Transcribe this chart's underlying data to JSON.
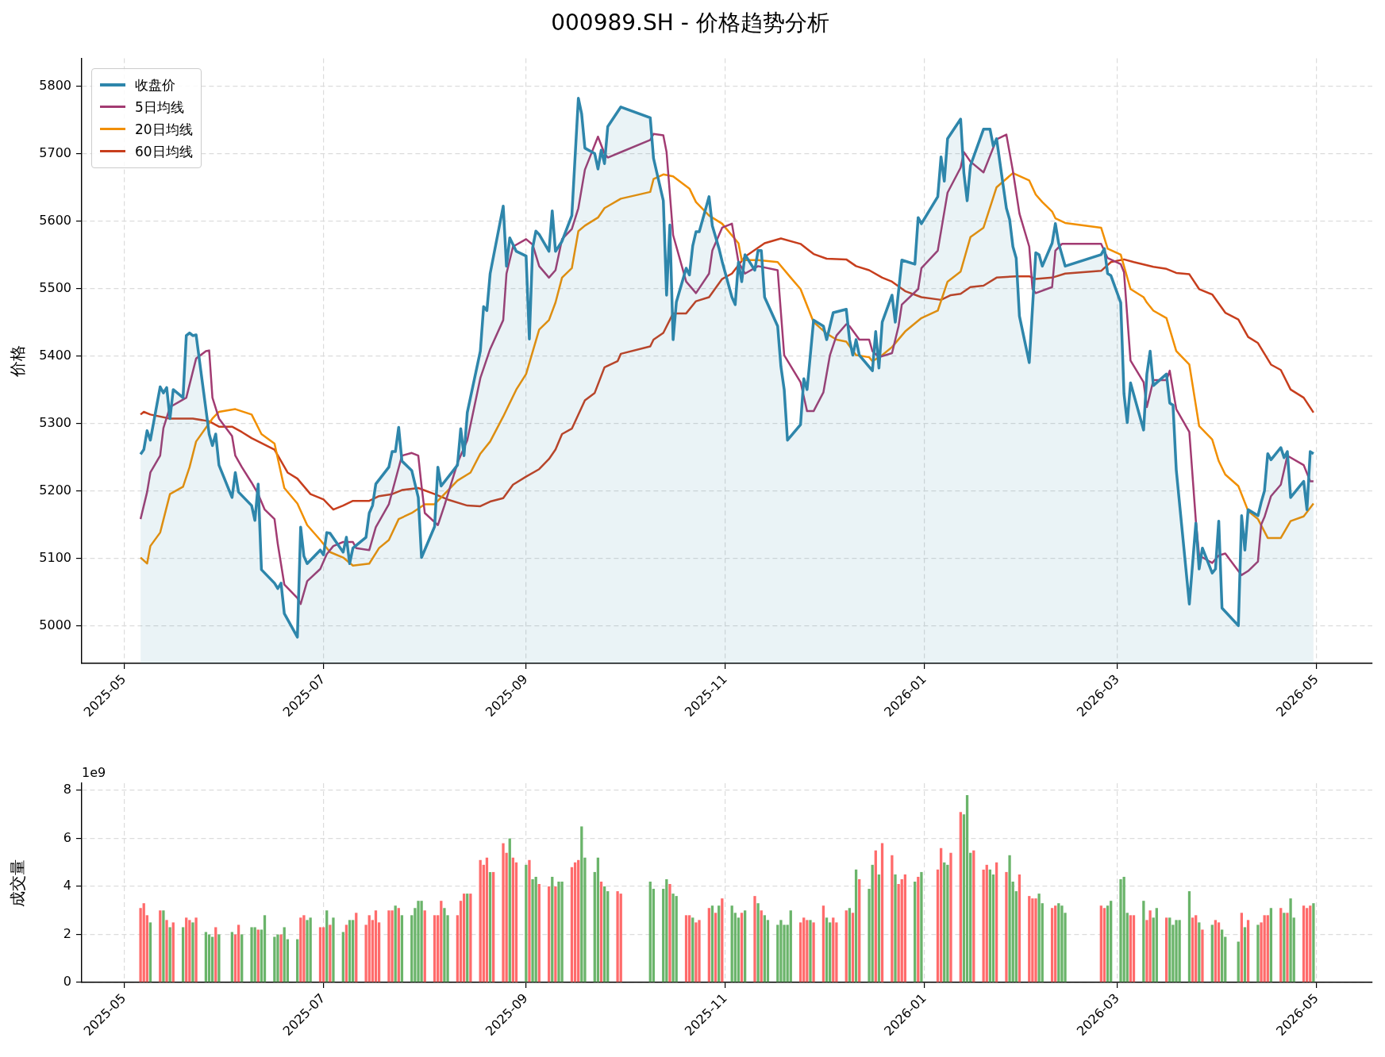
{
  "chart_data": [
    {
      "type": "line",
      "title": "000989.SH - 价格趋势分析",
      "ylabel": "价格",
      "xlim": [
        "2025-04-18",
        "2026-05-18"
      ],
      "xticks": [
        "2025-05",
        "2025-07",
        "2025-09",
        "2025-11",
        "2026-01",
        "2026-03",
        "2026-05"
      ],
      "ylim": [
        4944,
        5841
      ],
      "yticks": [
        5000,
        5100,
        5200,
        5300,
        5400,
        5500,
        5600,
        5700,
        5800
      ],
      "grid": true,
      "legend": "top left",
      "series": [
        {
          "name": "收盘价",
          "type": "area",
          "color": "#2e86ab",
          "x": [
            "2025-05-06",
            "2025-05-07",
            "2025-05-08",
            "2025-05-09",
            "2025-05-12",
            "2025-05-13",
            "2025-05-14",
            "2025-05-15",
            "2025-05-16",
            "2025-05-19",
            "2025-05-20",
            "2025-05-21",
            "2025-05-22",
            "2025-05-23",
            "2025-05-27",
            "2025-05-28",
            "2025-05-29",
            "2025-05-30",
            "2025-06-03",
            "2025-06-04",
            "2025-06-05",
            "2025-06-09",
            "2025-06-10",
            "2025-06-11",
            "2025-06-12",
            "2025-06-16",
            "2025-06-17",
            "2025-06-18",
            "2025-06-19",
            "2025-06-23",
            "2025-06-24",
            "2025-06-25",
            "2025-06-26",
            "2025-06-30",
            "2025-07-01",
            "2025-07-02",
            "2025-07-03",
            "2025-07-07",
            "2025-07-08",
            "2025-07-09",
            "2025-07-10",
            "2025-07-14",
            "2025-07-15",
            "2025-07-16",
            "2025-07-17",
            "2025-07-21",
            "2025-07-22",
            "2025-07-23",
            "2025-07-24",
            "2025-07-25",
            "2025-07-28",
            "2025-07-30",
            "2025-07-31",
            "2025-08-04",
            "2025-08-05",
            "2025-08-06",
            "2025-08-11",
            "2025-08-12",
            "2025-08-13",
            "2025-08-14",
            "2025-08-18",
            "2025-08-19",
            "2025-08-20",
            "2025-08-21",
            "2025-08-25",
            "2025-08-26",
            "2025-08-27",
            "2025-08-29",
            "2025-09-01",
            "2025-09-02",
            "2025-09-03",
            "2025-09-04",
            "2025-09-05",
            "2025-09-08",
            "2025-09-09",
            "2025-09-10",
            "2025-09-12",
            "2025-09-15",
            "2025-09-17",
            "2025-09-18",
            "2025-09-19",
            "2025-09-22",
            "2025-09-23",
            "2025-09-24",
            "2025-09-25",
            "2025-09-26",
            "2025-09-30",
            "2025-10-09",
            "2025-10-10",
            "2025-10-13",
            "2025-10-14",
            "2025-10-15",
            "2025-10-16",
            "2025-10-17",
            "2025-10-20",
            "2025-10-21",
            "2025-10-22",
            "2025-10-23",
            "2025-10-24",
            "2025-10-27",
            "2025-10-28",
            "2025-10-30",
            "2025-10-31",
            "2025-11-03",
            "2025-11-04",
            "2025-11-05",
            "2025-11-06",
            "2025-11-07",
            "2025-11-10",
            "2025-11-11",
            "2025-11-12",
            "2025-11-13",
            "2025-11-17",
            "2025-11-18",
            "2025-11-19",
            "2025-11-20",
            "2025-11-24",
            "2025-11-25",
            "2025-11-26",
            "2025-11-27",
            "2025-11-28",
            "2025-12-01",
            "2025-12-02",
            "2025-12-04",
            "2025-12-08",
            "2025-12-09",
            "2025-12-10",
            "2025-12-11",
            "2025-12-12",
            "2025-12-16",
            "2025-12-17",
            "2025-12-18",
            "2025-12-19",
            "2025-12-22",
            "2025-12-23",
            "2025-12-25",
            "2025-12-29",
            "2025-12-30",
            "2025-12-31",
            "2026-01-05",
            "2026-01-06",
            "2026-01-07",
            "2026-01-08",
            "2026-01-12",
            "2026-01-13",
            "2026-01-14",
            "2026-01-15",
            "2026-01-19",
            "2026-01-21",
            "2026-01-22",
            "2026-01-23",
            "2026-01-26",
            "2026-01-27",
            "2026-01-28",
            "2026-01-29",
            "2026-01-30",
            "2026-02-02",
            "2026-02-04",
            "2026-02-05",
            "2026-02-06",
            "2026-02-09",
            "2026-02-10",
            "2026-02-11",
            "2026-02-13",
            "2026-02-24",
            "2026-02-25",
            "2026-02-26",
            "2026-02-27",
            "2026-03-02",
            "2026-03-03",
            "2026-03-04",
            "2026-03-05",
            "2026-03-09",
            "2026-03-10",
            "2026-03-11",
            "2026-03-12",
            "2026-03-16",
            "2026-03-17",
            "2026-03-18",
            "2026-03-19",
            "2026-03-23",
            "2026-03-25",
            "2026-03-26",
            "2026-03-27",
            "2026-03-30",
            "2026-03-31",
            "2026-04-01",
            "2026-04-02",
            "2026-04-07",
            "2026-04-08",
            "2026-04-09",
            "2026-04-10",
            "2026-04-13",
            "2026-04-14",
            "2026-04-15",
            "2026-04-16",
            "2026-04-17",
            "2026-04-20",
            "2026-04-21",
            "2026-04-22",
            "2026-04-23",
            "2026-04-27",
            "2026-04-28",
            "2026-04-29",
            "2026-04-30"
          ],
          "values": [
            5254,
            5261,
            5289,
            5275,
            5354,
            5345,
            5353,
            5307,
            5350,
            5338,
            5430,
            5434,
            5430,
            5431,
            5284,
            5267,
            5284,
            5238,
            5190,
            5227,
            5198,
            5178,
            5156,
            5210,
            5083,
            5063,
            5055,
            5063,
            5018,
            4983,
            5146,
            5103,
            5092,
            5112,
            5105,
            5138,
            5137,
            5109,
            5131,
            5092,
            5115,
            5131,
            5167,
            5178,
            5210,
            5235,
            5258,
            5258,
            5294,
            5244,
            5230,
            5190,
            5101,
            5147,
            5235,
            5207,
            5238,
            5292,
            5252,
            5316,
            5407,
            5473,
            5467,
            5522,
            5622,
            5533,
            5575,
            5555,
            5548,
            5425,
            5560,
            5585,
            5580,
            5555,
            5615,
            5555,
            5570,
            5608,
            5782,
            5759,
            5708,
            5700,
            5677,
            5705,
            5685,
            5740,
            5769,
            5753,
            5693,
            5630,
            5490,
            5594,
            5424,
            5480,
            5530,
            5520,
            5563,
            5584,
            5584,
            5636,
            5593,
            5560,
            5540,
            5487,
            5476,
            5539,
            5510,
            5550,
            5527,
            5556,
            5556,
            5487,
            5444,
            5384,
            5350,
            5275,
            5298,
            5366,
            5350,
            5401,
            5453,
            5444,
            5424,
            5464,
            5469,
            5424,
            5401,
            5424,
            5401,
            5378,
            5436,
            5382,
            5450,
            5490,
            5450,
            5542,
            5536,
            5605,
            5596,
            5636,
            5695,
            5659,
            5722,
            5751,
            5671,
            5630,
            5682,
            5736,
            5736,
            5711,
            5722,
            5619,
            5602,
            5562,
            5545,
            5459,
            5390,
            5553,
            5550,
            5533,
            5567,
            5596,
            5567,
            5533,
            5550,
            5559,
            5522,
            5519,
            5479,
            5344,
            5301,
            5360,
            5290,
            5373,
            5407,
            5356,
            5373,
            5330,
            5327,
            5231,
            5032,
            5152,
            5084,
            5115,
            5078,
            5084,
            5155,
            5026,
            5000,
            5163,
            5112,
            5172,
            5163,
            5183,
            5200,
            5255,
            5246,
            5264,
            5249,
            5258,
            5190,
            5214,
            5172,
            5258,
            5255
          ]
        },
        {
          "name": "5日均线",
          "color": "#a23b72",
          "x": [
            "2025-05-06",
            "2025-05-08",
            "2025-05-09",
            "2025-05-12",
            "2025-05-13",
            "2025-05-15",
            "2025-05-20",
            "2025-05-23",
            "2025-05-26",
            "2025-05-27",
            "2025-05-28",
            "2025-05-30",
            "2025-06-03",
            "2025-06-04",
            "2025-06-06",
            "2025-06-09",
            "2025-06-11",
            "2025-06-13",
            "2025-06-16",
            "2025-06-17",
            "2025-06-19",
            "2025-06-23",
            "2025-06-24",
            "2025-06-26",
            "2025-06-30",
            "2025-07-02",
            "2025-07-04",
            "2025-07-07",
            "2025-07-10",
            "2025-07-11",
            "2025-07-15",
            "2025-07-17",
            "2025-07-21",
            "2025-07-25",
            "2025-07-28",
            "2025-07-30",
            "2025-07-31",
            "2025-08-01",
            "2025-08-05",
            "2025-08-07",
            "2025-08-11",
            "2025-08-14",
            "2025-08-18",
            "2025-08-21",
            "2025-08-25",
            "2025-08-26",
            "2025-08-28",
            "2025-09-01",
            "2025-09-03",
            "2025-09-05",
            "2025-09-08",
            "2025-09-10",
            "2025-09-12",
            "2025-09-15",
            "2025-09-17",
            "2025-09-19",
            "2025-09-23",
            "2025-09-25",
            "2025-09-26",
            "2025-09-30",
            "2025-10-09",
            "2025-10-10",
            "2025-10-13",
            "2025-10-14",
            "2025-10-16",
            "2025-10-20",
            "2025-10-23",
            "2025-10-27",
            "2025-10-28",
            "2025-10-31",
            "2025-11-03",
            "2025-11-05",
            "2025-11-07",
            "2025-11-11",
            "2025-11-17",
            "2025-11-19",
            "2025-11-24",
            "2025-11-26",
            "2025-11-28",
            "2025-12-01",
            "2025-12-03",
            "2025-12-05",
            "2025-12-08",
            "2025-12-09",
            "2025-12-12",
            "2025-12-15",
            "2025-12-16",
            "2025-12-18",
            "2025-12-22",
            "2025-12-24",
            "2025-12-25",
            "2025-12-30",
            "2025-12-31",
            "2026-01-05",
            "2026-01-08",
            "2026-01-12",
            "2026-01-13",
            "2026-01-15",
            "2026-01-19",
            "2026-01-23",
            "2026-01-26",
            "2026-01-28",
            "2026-01-30",
            "2026-02-02",
            "2026-02-03",
            "2026-02-04",
            "2026-02-09",
            "2026-02-10",
            "2026-02-12",
            "2026-02-24",
            "2026-02-26",
            "2026-03-02",
            "2026-03-03",
            "2026-03-05",
            "2026-03-09",
            "2026-03-10",
            "2026-03-12",
            "2026-03-16",
            "2026-03-17",
            "2026-03-19",
            "2026-03-23",
            "2026-03-25",
            "2026-03-26",
            "2026-03-30",
            "2026-04-01",
            "2026-04-03",
            "2026-04-07",
            "2026-04-08",
            "2026-04-10",
            "2026-04-13",
            "2026-04-14",
            "2026-04-15",
            "2026-04-17",
            "2026-04-20",
            "2026-04-22",
            "2026-04-27",
            "2026-04-29",
            "2026-04-30"
          ],
          "values": [
            5158,
            5198,
            5227,
            5252,
            5293,
            5324,
            5338,
            5396,
            5407,
            5408,
            5338,
            5307,
            5281,
            5252,
            5235,
            5212,
            5195,
            5172,
            5158,
            5121,
            5061,
            5041,
            5032,
            5066,
            5084,
            5106,
            5118,
            5124,
            5124,
            5115,
            5112,
            5146,
            5180,
            5252,
            5256,
            5252,
            5207,
            5167,
            5149,
            5178,
            5241,
            5275,
            5367,
            5410,
            5453,
            5522,
            5562,
            5573,
            5565,
            5533,
            5516,
            5527,
            5573,
            5588,
            5619,
            5676,
            5725,
            5700,
            5694,
            5702,
            5720,
            5729,
            5727,
            5702,
            5579,
            5510,
            5493,
            5522,
            5556,
            5590,
            5596,
            5539,
            5522,
            5533,
            5527,
            5401,
            5361,
            5318,
            5318,
            5346,
            5401,
            5430,
            5447,
            5444,
            5424,
            5424,
            5407,
            5398,
            5404,
            5444,
            5476,
            5499,
            5530,
            5556,
            5642,
            5679,
            5702,
            5688,
            5672,
            5721,
            5728,
            5674,
            5611,
            5562,
            5499,
            5493,
            5502,
            5556,
            5566,
            5566,
            5545,
            5536,
            5524,
            5393,
            5361,
            5324,
            5364,
            5364,
            5378,
            5321,
            5287,
            5155,
            5104,
            5093,
            5104,
            5107,
            5081,
            5075,
            5081,
            5095,
            5150,
            5161,
            5192,
            5209,
            5252,
            5238,
            5214,
            5214
          ]
        },
        {
          "name": "20日均线",
          "color": "#f18f01",
          "x": [
            "2025-05-06",
            "2025-05-08",
            "2025-05-09",
            "2025-05-12",
            "2025-05-15",
            "2025-05-19",
            "2025-05-21",
            "2025-05-23",
            "2025-05-28",
            "2025-05-30",
            "2025-06-04",
            "2025-06-09",
            "2025-06-12",
            "2025-06-16",
            "2025-06-19",
            "2025-06-23",
            "2025-06-26",
            "2025-06-30",
            "2025-07-03",
            "2025-07-07",
            "2025-07-10",
            "2025-07-15",
            "2025-07-18",
            "2025-07-21",
            "2025-07-24",
            "2025-07-28",
            "2025-08-01",
            "2025-08-04",
            "2025-08-07",
            "2025-08-11",
            "2025-08-15",
            "2025-08-18",
            "2025-08-21",
            "2025-08-25",
            "2025-08-29",
            "2025-09-01",
            "2025-09-05",
            "2025-09-08",
            "2025-09-10",
            "2025-09-12",
            "2025-09-15",
            "2025-09-17",
            "2025-09-19",
            "2025-09-23",
            "2025-09-25",
            "2025-09-30",
            "2025-10-09",
            "2025-10-10",
            "2025-10-13",
            "2025-10-16",
            "2025-10-21",
            "2025-10-23",
            "2025-10-27",
            "2025-10-31",
            "2025-11-05",
            "2025-11-06",
            "2025-11-11",
            "2025-11-17",
            "2025-11-21",
            "2025-11-24",
            "2025-11-28",
            "2025-12-02",
            "2025-12-05",
            "2025-12-08",
            "2025-12-11",
            "2025-12-15",
            "2025-12-16",
            "2025-12-19",
            "2025-12-22",
            "2025-12-26",
            "2025-12-31",
            "2026-01-05",
            "2026-01-08",
            "2026-01-12",
            "2026-01-15",
            "2026-01-19",
            "2026-01-23",
            "2026-01-28",
            "2026-02-02",
            "2026-02-04",
            "2026-02-06",
            "2026-02-09",
            "2026-02-10",
            "2026-02-13",
            "2026-02-24",
            "2026-02-26",
            "2026-03-02",
            "2026-03-05",
            "2026-03-09",
            "2026-03-10",
            "2026-03-12",
            "2026-03-16",
            "2026-03-19",
            "2026-03-23",
            "2026-03-26",
            "2026-03-30",
            "2026-04-01",
            "2026-04-03",
            "2026-04-07",
            "2026-04-10",
            "2026-04-13",
            "2026-04-16",
            "2026-04-20",
            "2026-04-23",
            "2026-04-27",
            "2026-04-30"
          ],
          "values": [
            5101,
            5092,
            5118,
            5138,
            5195,
            5206,
            5235,
            5273,
            5307,
            5317,
            5321,
            5313,
            5284,
            5270,
            5204,
            5181,
            5149,
            5127,
            5109,
            5101,
            5089,
            5092,
            5115,
            5127,
            5158,
            5167,
            5180,
            5180,
            5195,
            5215,
            5227,
            5255,
            5273,
            5310,
            5350,
            5373,
            5439,
            5453,
            5479,
            5516,
            5530,
            5585,
            5593,
            5605,
            5619,
            5633,
            5643,
            5662,
            5669,
            5666,
            5648,
            5628,
            5608,
            5596,
            5567,
            5542,
            5542,
            5539,
            5516,
            5499,
            5450,
            5433,
            5424,
            5421,
            5401,
            5398,
            5392,
            5401,
            5413,
            5436,
            5456,
            5467,
            5510,
            5525,
            5576,
            5590,
            5650,
            5671,
            5660,
            5639,
            5628,
            5614,
            5604,
            5597,
            5590,
            5559,
            5550,
            5499,
            5487,
            5479,
            5467,
            5456,
            5407,
            5387,
            5296,
            5276,
            5244,
            5224,
            5207,
            5170,
            5158,
            5130,
            5130,
            5155,
            5162,
            5181
          ]
        },
        {
          "name": "60日均线",
          "color": "#c73e1d",
          "x": [
            "2025-05-06",
            "2025-05-07",
            "2025-05-09",
            "2025-05-15",
            "2025-05-22",
            "2025-05-27",
            "2025-05-30",
            "2025-06-03",
            "2025-06-06",
            "2025-06-09",
            "2025-06-16",
            "2025-06-20",
            "2025-06-23",
            "2025-06-27",
            "2025-07-01",
            "2025-07-04",
            "2025-07-07",
            "2025-07-10",
            "2025-07-15",
            "2025-07-18",
            "2025-07-22",
            "2025-07-25",
            "2025-07-30",
            "2025-08-04",
            "2025-08-08",
            "2025-08-14",
            "2025-08-18",
            "2025-08-21",
            "2025-08-25",
            "2025-08-28",
            "2025-09-01",
            "2025-09-05",
            "2025-09-08",
            "2025-09-10",
            "2025-09-12",
            "2025-09-15",
            "2025-09-19",
            "2025-09-22",
            "2025-09-25",
            "2025-09-29",
            "2025-09-30",
            "2025-10-09",
            "2025-10-10",
            "2025-10-13",
            "2025-10-16",
            "2025-10-20",
            "2025-10-23",
            "2025-10-27",
            "2025-10-31",
            "2025-11-03",
            "2025-11-07",
            "2025-11-13",
            "2025-11-18",
            "2025-11-24",
            "2025-11-28",
            "2025-12-02",
            "2025-12-08",
            "2025-12-11",
            "2025-12-15",
            "2025-12-19",
            "2025-12-22",
            "2025-12-26",
            "2025-12-31",
            "2026-01-06",
            "2026-01-09",
            "2026-01-12",
            "2026-01-15",
            "2026-01-19",
            "2026-01-23",
            "2026-01-29",
            "2026-02-02",
            "2026-02-04",
            "2026-02-09",
            "2026-02-13",
            "2026-02-24",
            "2026-02-27",
            "2026-03-03",
            "2026-03-06",
            "2026-03-12",
            "2026-03-16",
            "2026-03-19",
            "2026-03-23",
            "2026-03-26",
            "2026-03-30",
            "2026-04-03",
            "2026-04-07",
            "2026-04-10",
            "2026-04-13",
            "2026-04-17",
            "2026-04-20",
            "2026-04-23",
            "2026-04-27",
            "2026-04-30"
          ],
          "values": [
            5313,
            5317,
            5313,
            5307,
            5307,
            5303,
            5295,
            5295,
            5287,
            5278,
            5261,
            5227,
            5218,
            5195,
            5187,
            5172,
            5178,
            5185,
            5185,
            5192,
            5195,
            5201,
            5204,
            5195,
            5187,
            5178,
            5177,
            5184,
            5189,
            5209,
            5221,
            5232,
            5247,
            5261,
            5284,
            5292,
            5334,
            5345,
            5383,
            5392,
            5403,
            5414,
            5424,
            5434,
            5463,
            5463,
            5481,
            5487,
            5514,
            5522,
            5547,
            5567,
            5574,
            5566,
            5551,
            5544,
            5543,
            5533,
            5527,
            5516,
            5510,
            5496,
            5487,
            5483,
            5490,
            5492,
            5502,
            5504,
            5516,
            5518,
            5518,
            5514,
            5516,
            5522,
            5526,
            5539,
            5543,
            5539,
            5532,
            5529,
            5523,
            5521,
            5499,
            5491,
            5464,
            5454,
            5428,
            5419,
            5387,
            5379,
            5350,
            5338,
            5316
          ]
        }
      ]
    },
    {
      "type": "bar",
      "ylabel": "成交量",
      "annotations": [
        "1e9"
      ],
      "xlim": [
        "2025-04-18",
        "2026-05-18"
      ],
      "xticks": [
        "2025-05",
        "2025-07",
        "2025-09",
        "2025-11",
        "2026-01",
        "2026-03",
        "2026-05"
      ],
      "ylim": [
        0,
        8.3
      ],
      "yticks": [
        0,
        2,
        4,
        6,
        8
      ],
      "grid": true,
      "x": [
        "2025-05-06",
        "2025-05-07",
        "2025-05-08",
        "2025-05-09",
        "2025-05-12",
        "2025-05-13",
        "2025-05-14",
        "2025-05-15",
        "2025-05-16",
        "2025-05-19",
        "2025-05-20",
        "2025-05-21",
        "2025-05-22",
        "2025-05-23",
        "2025-05-26",
        "2025-05-27",
        "2025-05-28",
        "2025-05-29",
        "2025-05-30",
        "2025-06-03",
        "2025-06-04",
        "2025-06-05",
        "2025-06-06",
        "2025-06-09",
        "2025-06-10",
        "2025-06-11",
        "2025-06-12",
        "2025-06-13",
        "2025-06-16",
        "2025-06-17",
        "2025-06-18",
        "2025-06-19",
        "2025-06-20",
        "2025-06-23",
        "2025-06-24",
        "2025-06-25",
        "2025-06-26",
        "2025-06-27",
        "2025-06-30",
        "2025-07-01",
        "2025-07-02",
        "2025-07-03",
        "2025-07-04",
        "2025-07-07",
        "2025-07-08",
        "2025-07-09",
        "2025-07-10",
        "2025-07-11",
        "2025-07-14",
        "2025-07-15",
        "2025-07-16",
        "2025-07-17",
        "2025-07-18",
        "2025-07-21",
        "2025-07-22",
        "2025-07-23",
        "2025-07-24",
        "2025-07-25",
        "2025-07-28",
        "2025-07-29",
        "2025-07-30",
        "2025-07-31",
        "2025-08-01",
        "2025-08-04",
        "2025-08-05",
        "2025-08-06",
        "2025-08-07",
        "2025-08-08",
        "2025-08-11",
        "2025-08-12",
        "2025-08-13",
        "2025-08-14",
        "2025-08-15",
        "2025-08-18",
        "2025-08-19",
        "2025-08-20",
        "2025-08-21",
        "2025-08-22",
        "2025-08-25",
        "2025-08-26",
        "2025-08-27",
        "2025-08-28",
        "2025-08-29",
        "2025-09-01",
        "2025-09-02",
        "2025-09-03",
        "2025-09-04",
        "2025-09-05",
        "2025-09-08",
        "2025-09-09",
        "2025-09-10",
        "2025-09-11",
        "2025-09-12",
        "2025-09-15",
        "2025-09-16",
        "2025-09-17",
        "2025-09-18",
        "2025-09-19",
        "2025-09-22",
        "2025-09-23",
        "2025-09-24",
        "2025-09-25",
        "2025-09-26",
        "2025-09-29",
        "2025-09-30",
        "2025-10-09",
        "2025-10-10",
        "2025-10-13",
        "2025-10-14",
        "2025-10-15",
        "2025-10-16",
        "2025-10-17",
        "2025-10-20",
        "2025-10-21",
        "2025-10-22",
        "2025-10-23",
        "2025-10-24",
        "2025-10-27",
        "2025-10-28",
        "2025-10-29",
        "2025-10-30",
        "2025-10-31",
        "2025-11-03",
        "2025-11-04",
        "2025-11-05",
        "2025-11-06",
        "2025-11-07",
        "2025-11-10",
        "2025-11-11",
        "2025-11-12",
        "2025-11-13",
        "2025-11-14",
        "2025-11-17",
        "2025-11-18",
        "2025-11-19",
        "2025-11-20",
        "2025-11-21",
        "2025-11-24",
        "2025-11-25",
        "2025-11-26",
        "2025-11-27",
        "2025-11-28",
        "2025-12-01",
        "2025-12-02",
        "2025-12-03",
        "2025-12-04",
        "2025-12-05",
        "2025-12-08",
        "2025-12-09",
        "2025-12-10",
        "2025-12-11",
        "2025-12-12",
        "2025-12-15",
        "2025-12-16",
        "2025-12-17",
        "2025-12-18",
        "2025-12-19",
        "2025-12-22",
        "2025-12-23",
        "2025-12-24",
        "2025-12-25",
        "2025-12-26",
        "2025-12-29",
        "2025-12-30",
        "2025-12-31",
        "2026-01-05",
        "2026-01-06",
        "2026-01-07",
        "2026-01-08",
        "2026-01-09",
        "2026-01-12",
        "2026-01-13",
        "2026-01-14",
        "2026-01-15",
        "2026-01-16",
        "2026-01-19",
        "2026-01-20",
        "2026-01-21",
        "2026-01-22",
        "2026-01-23",
        "2026-01-26",
        "2026-01-27",
        "2026-01-28",
        "2026-01-29",
        "2026-01-30",
        "2026-02-02",
        "2026-02-03",
        "2026-02-04",
        "2026-02-05",
        "2026-02-06",
        "2026-02-09",
        "2026-02-10",
        "2026-02-11",
        "2026-02-12",
        "2026-02-13",
        "2026-02-24",
        "2026-02-25",
        "2026-02-26",
        "2026-02-27",
        "2026-03-02",
        "2026-03-03",
        "2026-03-04",
        "2026-03-05",
        "2026-03-06",
        "2026-03-09",
        "2026-03-10",
        "2026-03-11",
        "2026-03-12",
        "2026-03-13",
        "2026-03-16",
        "2026-03-17",
        "2026-03-18",
        "2026-03-19",
        "2026-03-20",
        "2026-03-23",
        "2026-03-24",
        "2026-03-25",
        "2026-03-26",
        "2026-03-27",
        "2026-03-30",
        "2026-03-31",
        "2026-04-01",
        "2026-04-02",
        "2026-04-03",
        "2026-04-07",
        "2026-04-08",
        "2026-04-09",
        "2026-04-10",
        "2026-04-13",
        "2026-04-14",
        "2026-04-15",
        "2026-04-16",
        "2026-04-17",
        "2026-04-20",
        "2026-04-21",
        "2026-04-22",
        "2026-04-23",
        "2026-04-24",
        "2026-04-27",
        "2026-04-28",
        "2026-04-29",
        "2026-04-30"
      ],
      "values": [
        3.1,
        3.3,
        2.8,
        2.5,
        3.0,
        3.0,
        2.6,
        2.3,
        2.5,
        2.3,
        2.7,
        2.6,
        2.5,
        2.7,
        2.1,
        2.0,
        1.9,
        2.3,
        2.0,
        2.1,
        2.0,
        2.4,
        2.0,
        2.3,
        2.3,
        2.2,
        2.2,
        2.8,
        1.9,
        2.0,
        2.0,
        2.3,
        1.8,
        1.8,
        2.7,
        2.8,
        2.6,
        2.7,
        2.3,
        2.3,
        3.0,
        2.4,
        2.7,
        2.1,
        2.4,
        2.6,
        2.6,
        2.9,
        2.4,
        2.8,
        2.6,
        3.0,
        2.5,
        3.0,
        3.0,
        3.2,
        3.1,
        2.8,
        2.8,
        3.1,
        3.4,
        3.4,
        3.0,
        2.8,
        2.8,
        3.4,
        3.1,
        2.8,
        2.8,
        3.4,
        3.7,
        3.7,
        3.7,
        5.1,
        4.9,
        5.2,
        4.6,
        4.6,
        5.8,
        5.4,
        6.0,
        5.2,
        5.0,
        4.9,
        5.1,
        4.3,
        4.4,
        4.1,
        4.0,
        4.4,
        4.0,
        4.2,
        4.2,
        4.8,
        5.0,
        5.1,
        6.5,
        5.2,
        4.6,
        5.2,
        4.2,
        4.0,
        3.8,
        3.8,
        3.7,
        4.2,
        3.9,
        3.9,
        4.3,
        4.1,
        3.7,
        3.6,
        2.8,
        2.8,
        2.7,
        2.5,
        2.6,
        3.1,
        3.2,
        2.9,
        3.2,
        3.5,
        3.2,
        2.9,
        2.7,
        2.9,
        3.0,
        3.6,
        3.3,
        3.0,
        2.8,
        2.6,
        2.4,
        2.6,
        2.4,
        2.4,
        3.0,
        2.5,
        2.7,
        2.6,
        2.6,
        2.5,
        3.2,
        2.7,
        2.5,
        2.7,
        2.5,
        3.0,
        3.1,
        2.9,
        4.7,
        4.3,
        3.9,
        4.9,
        5.5,
        4.5,
        5.8,
        5.3,
        4.5,
        4.1,
        4.3,
        4.5,
        4.2,
        4.4,
        4.6,
        4.7,
        5.6,
        5.0,
        4.9,
        5.4,
        7.1,
        7.0,
        7.8,
        5.4,
        5.5,
        4.7,
        4.9,
        4.7,
        4.5,
        5.0,
        4.6,
        5.3,
        4.2,
        3.8,
        4.5,
        3.6,
        3.5,
        3.5,
        3.7,
        3.3,
        3.1,
        3.2,
        3.3,
        3.2,
        2.9,
        3.2,
        3.1,
        3.2,
        3.4,
        4.3,
        4.4,
        2.9,
        2.8,
        2.8,
        3.4,
        2.6,
        3.0,
        2.7,
        3.1,
        2.7,
        2.7,
        2.4,
        2.6,
        2.6,
        3.8,
        2.7,
        2.8,
        2.5,
        2.2,
        2.4,
        2.6,
        2.5,
        2.2,
        1.9,
        1.7,
        2.9,
        2.3,
        2.6,
        2.4,
        2.5,
        2.8,
        2.8,
        3.1,
        3.1,
        2.9,
        2.9,
        3.5,
        2.7,
        3.2,
        3.1,
        3.2,
        3.3
      ],
      "colors": [
        "#ff6b6b",
        "#ff6b6b",
        "#ff6b6b",
        "#6ab46a",
        "#ff6b6b",
        "#6ab46a",
        "#ff6b6b",
        "#6ab46a",
        "#ff6b6b",
        "#6ab46a",
        "#ff6b6b",
        "#ff6b6b",
        "#6ab46a",
        "#ff6b6b",
        "#6ab46a",
        "#6ab46a",
        "#6ab46a",
        "#ff6b6b",
        "#6ab46a",
        "#6ab46a",
        "#ff6b6b",
        "#ff6b6b",
        "#6ab46a",
        "#6ab46a",
        "#6ab46a",
        "#ff6b6b",
        "#6ab46a",
        "#6ab46a",
        "#6ab46a",
        "#6ab46a",
        "#ff6b6b",
        "#6ab46a",
        "#6ab46a",
        "#6ab46a",
        "#ff6b6b",
        "#ff6b6b",
        "#6ab46a",
        "#6ab46a",
        "#ff6b6b",
        "#ff6b6b",
        "#6ab46a",
        "#ff6b6b",
        "#6ab46a",
        "#6ab46a",
        "#ff6b6b",
        "#6ab46a",
        "#6ab46a",
        "#ff6b6b",
        "#ff6b6b",
        "#ff6b6b",
        "#ff6b6b",
        "#ff6b6b",
        "#ff6b6b",
        "#ff6b6b",
        "#ff6b6b",
        "#6ab46a",
        "#ff6b6b",
        "#6ab46a",
        "#6ab46a",
        "#6ab46a",
        "#6ab46a",
        "#6ab46a",
        "#ff6b6b",
        "#ff6b6b",
        "#ff6b6b",
        "#ff6b6b",
        "#6ab46a",
        "#6ab46a",
        "#ff6b6b",
        "#ff6b6b",
        "#ff6b6b",
        "#6ab46a",
        "#ff6b6b",
        "#ff6b6b",
        "#ff6b6b",
        "#ff6b6b",
        "#6ab46a",
        "#ff6b6b",
        "#ff6b6b",
        "#ff6b6b",
        "#6ab46a",
        "#ff6b6b",
        "#ff6b6b",
        "#6ab46a",
        "#ff6b6b",
        "#6ab46a",
        "#6ab46a",
        "#ff6b6b",
        "#ff6b6b",
        "#6ab46a",
        "#ff6b6b",
        "#6ab46a",
        "#6ab46a",
        "#ff6b6b",
        "#ff6b6b",
        "#ff6b6b",
        "#6ab46a",
        "#6ab46a",
        "#6ab46a",
        "#6ab46a",
        "#ff6b6b",
        "#6ab46a",
        "#6ab46a",
        "#ff6b6b",
        "#ff6b6b",
        "#6ab46a",
        "#6ab46a",
        "#6ab46a",
        "#6ab46a",
        "#ff6b6b",
        "#6ab46a",
        "#6ab46a",
        "#ff6b6b",
        "#ff6b6b",
        "#6ab46a",
        "#ff6b6b",
        "#ff6b6b",
        "#ff6b6b",
        "#6ab46a",
        "#ff6b6b",
        "#6ab46a",
        "#ff6b6b",
        "#6ab46a",
        "#6ab46a",
        "#6ab46a",
        "#ff6b6b",
        "#6ab46a",
        "#ff6b6b",
        "#6ab46a",
        "#ff6b6b",
        "#6ab46a",
        "#6ab46a",
        "#6ab46a",
        "#6ab46a",
        "#6ab46a",
        "#6ab46a",
        "#6ab46a",
        "#ff6b6b",
        "#ff6b6b",
        "#ff6b6b",
        "#6ab46a",
        "#ff6b6b",
        "#ff6b6b",
        "#6ab46a",
        "#6ab46a",
        "#ff6b6b",
        "#ff6b6b",
        "#ff6b6b",
        "#6ab46a",
        "#ff6b6b",
        "#6ab46a",
        "#ff6b6b",
        "#6ab46a",
        "#6ab46a",
        "#ff6b6b",
        "#6ab46a",
        "#ff6b6b",
        "#ff6b6b",
        "#6ab46a",
        "#ff6b6b",
        "#ff6b6b",
        "#ff6b6b",
        "#6ab46a",
        "#ff6b6b",
        "#6ab46a",
        "#ff6b6b",
        "#ff6b6b",
        "#6ab46a",
        "#6ab46a",
        "#ff6b6b",
        "#ff6b6b",
        "#6ab46a",
        "#6ab46a",
        "#6ab46a",
        "#ff6b6b",
        "#ff6b6b",
        "#ff6b6b",
        "#6ab46a",
        "#6ab46a",
        "#ff6b6b",
        "#ff6b6b",
        "#6ab46a",
        "#6ab46a",
        "#6ab46a",
        "#ff6b6b",
        "#ff6b6b",
        "#ff6b6b",
        "#ff6b6b",
        "#6ab46a",
        "#6ab46a",
        "#ff6b6b",
        "#ff6b6b",
        "#6ab46a",
        "#6ab46a",
        "#6ab46a",
        "#ff6b6b",
        "#ff6b6b",
        "#6ab46a",
        "#6ab46a",
        "#6ab46a",
        "#6ab46a",
        "#6ab46a",
        "#ff6b6b",
        "#ff6b6b",
        "#6ab46a",
        "#ff6b6b",
        "#ff6b6b",
        "#6ab46a",
        "#6ab46a",
        "#ff6b6b",
        "#6ab46a",
        "#6ab46a",
        "#6ab46a",
        "#6ab46a",
        "#6ab46a",
        "#ff6b6b",
        "#ff6b6b",
        "#6ab46a",
        "#ff6b6b",
        "#6ab46a",
        "#ff6b6b",
        "#ff6b6b",
        "#6ab46a",
        "#6ab46a",
        "#6ab46a",
        "#ff6b6b",
        "#6ab46a",
        "#ff6b6b",
        "#6ab46a",
        "#ff6b6b",
        "#ff6b6b",
        "#ff6b6b",
        "#6ab46a",
        "#ff6b6b",
        "#6ab46a",
        "#ff6b6b",
        "#6ab46a",
        "#6ab46a",
        "#ff6b6b",
        "#ff6b6b",
        "#ff6b6b",
        "#6ab46a"
      ]
    }
  ]
}
